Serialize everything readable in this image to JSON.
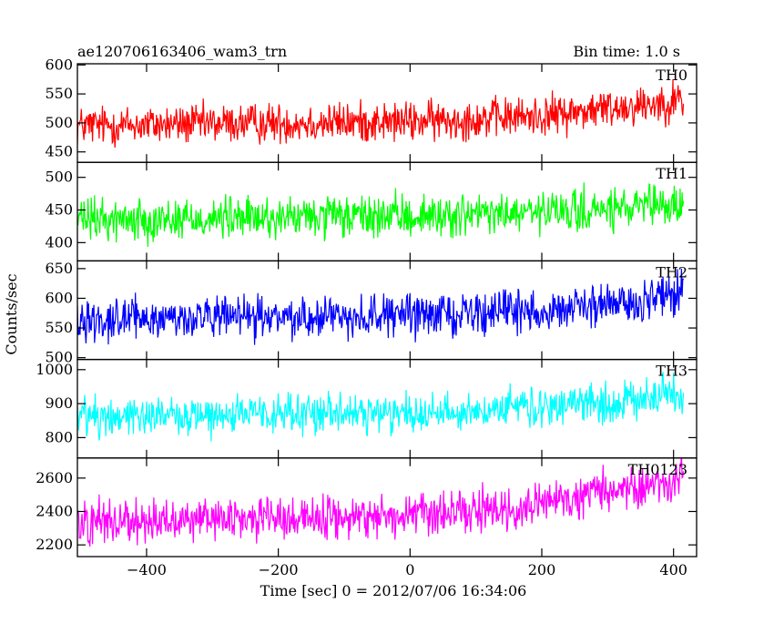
{
  "header": {
    "left_title": "ae120706163406_wam3_trn",
    "right_title": "Bin time: 1.0 s"
  },
  "ylabel": "Counts/sec",
  "xlabel": "Time [sec] 0 = 2012/07/06 16:34:06",
  "chart_data": {
    "type": "line",
    "title": "ae120706163406_wam3_trn",
    "subtitle": "Bin time: 1.0 s",
    "xlabel": "Time [sec] 0 = 2012/07/06 16:34:06",
    "ylabel": "Counts/sec",
    "xlim": [
      -505,
      435
    ],
    "x_start": -505,
    "x_end": 415,
    "bin_time": 1.0,
    "x_ticks": [
      -400,
      -200,
      0,
      200,
      400
    ],
    "x_tick_labels": [
      "−400",
      "−200",
      "0",
      "200",
      "400"
    ],
    "grid": false,
    "panels": [
      {
        "name": "TH0",
        "color": "#ff0000",
        "ylim": [
          432,
          602
        ],
        "y_ticks": [
          450,
          500,
          550,
          600
        ],
        "trend": [
          [
            -505,
            495
          ],
          [
            -200,
            500
          ],
          [
            0,
            502
          ],
          [
            200,
            512
          ],
          [
            300,
            525
          ],
          [
            415,
            540
          ]
        ],
        "noise_amplitude": 32
      },
      {
        "name": "TH1",
        "color": "#00ff00",
        "ylim": [
          372,
          523
        ],
        "y_ticks": [
          400,
          450,
          500
        ],
        "trend": [
          [
            -505,
            435
          ],
          [
            -200,
            438
          ],
          [
            0,
            440
          ],
          [
            200,
            445
          ],
          [
            350,
            452
          ],
          [
            415,
            458
          ]
        ],
        "noise_amplitude": 30
      },
      {
        "name": "TH2",
        "color": "#0000ff",
        "ylim": [
          497,
          663
        ],
        "y_ticks": [
          500,
          550,
          600,
          650
        ],
        "trend": [
          [
            -505,
            565
          ],
          [
            -200,
            568
          ],
          [
            0,
            572
          ],
          [
            200,
            580
          ],
          [
            330,
            590
          ],
          [
            415,
            612
          ]
        ],
        "noise_amplitude": 32
      },
      {
        "name": "TH3",
        "color": "#00ffff",
        "ylim": [
          740,
          1030
        ],
        "y_ticks": [
          800,
          900,
          1000
        ],
        "trend": [
          [
            -505,
            865
          ],
          [
            -200,
            868
          ],
          [
            0,
            872
          ],
          [
            200,
            888
          ],
          [
            320,
            905
          ],
          [
            415,
            935
          ]
        ],
        "noise_amplitude": 55
      },
      {
        "name": "TH0123",
        "color": "#ff00ff",
        "ylim": [
          2130,
          2720
        ],
        "y_ticks": [
          2200,
          2400,
          2600
        ],
        "trend": [
          [
            -505,
            2345
          ],
          [
            -200,
            2360
          ],
          [
            0,
            2375
          ],
          [
            100,
            2390
          ],
          [
            180,
            2420
          ],
          [
            300,
            2520
          ],
          [
            415,
            2600
          ]
        ],
        "noise_amplitude": 120
      }
    ]
  }
}
